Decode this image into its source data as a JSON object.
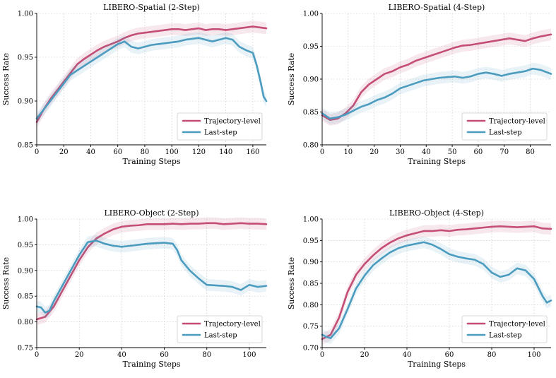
{
  "chart_data": [
    {
      "type": "line",
      "title": "LIBERO-Spatial (2-Step)",
      "xlabel": "Training Steps",
      "ylabel": "Success Rate",
      "xlim": [
        0,
        170
      ],
      "ylim": [
        0.85,
        1.0
      ],
      "xticks": [
        0,
        20,
        40,
        60,
        80,
        100,
        120,
        140,
        160
      ],
      "yticks": [
        0.85,
        0.9,
        0.95,
        1.0
      ],
      "xtick_labels": [
        "0",
        "20",
        "40",
        "60",
        "80",
        "100",
        "120",
        "140",
        "160"
      ],
      "ytick_labels": [
        "0.85",
        "0.90",
        "0.95",
        "1.00"
      ],
      "grid": true,
      "legend": "lower-right",
      "series": [
        {
          "name": "Trajectory-level",
          "color": "#c44e75",
          "x": [
            0,
            5,
            10,
            15,
            20,
            25,
            30,
            35,
            40,
            45,
            50,
            55,
            60,
            65,
            70,
            75,
            80,
            85,
            90,
            95,
            100,
            105,
            110,
            115,
            120,
            125,
            130,
            135,
            140,
            145,
            150,
            155,
            160,
            165,
            170
          ],
          "y": [
            0.876,
            0.89,
            0.902,
            0.912,
            0.922,
            0.932,
            0.942,
            0.948,
            0.953,
            0.958,
            0.962,
            0.965,
            0.968,
            0.972,
            0.975,
            0.977,
            0.978,
            0.979,
            0.98,
            0.981,
            0.982,
            0.982,
            0.981,
            0.982,
            0.983,
            0.981,
            0.982,
            0.982,
            0.981,
            0.982,
            0.983,
            0.984,
            0.985,
            0.984,
            0.983
          ]
        },
        {
          "name": "Last-step",
          "color": "#4c9cbf",
          "x": [
            0,
            5,
            10,
            15,
            20,
            25,
            30,
            35,
            40,
            45,
            50,
            55,
            60,
            65,
            70,
            75,
            80,
            85,
            90,
            95,
            100,
            105,
            110,
            115,
            120,
            125,
            130,
            135,
            140,
            145,
            150,
            155,
            160,
            163,
            166,
            168,
            170
          ],
          "y": [
            0.88,
            0.89,
            0.9,
            0.91,
            0.92,
            0.93,
            0.935,
            0.94,
            0.945,
            0.95,
            0.955,
            0.96,
            0.965,
            0.968,
            0.962,
            0.96,
            0.962,
            0.964,
            0.965,
            0.966,
            0.967,
            0.968,
            0.97,
            0.971,
            0.972,
            0.97,
            0.968,
            0.97,
            0.972,
            0.97,
            0.962,
            0.958,
            0.955,
            0.94,
            0.92,
            0.905,
            0.9
          ]
        }
      ]
    },
    {
      "type": "line",
      "title": "LIBERO-Spatial (4-Step)",
      "xlabel": "Training Steps",
      "ylabel": "Success Rate",
      "xlim": [
        0,
        88
      ],
      "ylim": [
        0.8,
        1.0
      ],
      "xticks": [
        0,
        10,
        20,
        30,
        40,
        50,
        60,
        70,
        80
      ],
      "yticks": [
        0.8,
        0.85,
        0.9,
        0.95,
        1.0
      ],
      "xtick_labels": [
        "0",
        "10",
        "20",
        "30",
        "40",
        "50",
        "60",
        "70",
        "80"
      ],
      "ytick_labels": [
        "0.80",
        "0.85",
        "0.90",
        "0.95",
        "1.00"
      ],
      "grid": true,
      "legend": "lower-right",
      "series": [
        {
          "name": "Trajectory-level",
          "color": "#c44e75",
          "x": [
            0,
            3,
            6,
            9,
            12,
            15,
            18,
            21,
            24,
            27,
            30,
            33,
            36,
            39,
            42,
            45,
            48,
            51,
            54,
            57,
            60,
            63,
            66,
            69,
            72,
            75,
            78,
            81,
            84,
            88
          ],
          "y": [
            0.845,
            0.838,
            0.84,
            0.848,
            0.86,
            0.88,
            0.892,
            0.9,
            0.908,
            0.912,
            0.918,
            0.922,
            0.928,
            0.932,
            0.936,
            0.94,
            0.944,
            0.948,
            0.951,
            0.952,
            0.954,
            0.956,
            0.958,
            0.96,
            0.962,
            0.96,
            0.958,
            0.962,
            0.965,
            0.968
          ]
        },
        {
          "name": "Last-step",
          "color": "#4c9cbf",
          "x": [
            0,
            3,
            6,
            9,
            12,
            15,
            18,
            21,
            24,
            27,
            30,
            33,
            36,
            39,
            42,
            45,
            48,
            51,
            54,
            57,
            60,
            63,
            66,
            69,
            72,
            75,
            78,
            81,
            84,
            88
          ],
          "y": [
            0.848,
            0.84,
            0.842,
            0.846,
            0.852,
            0.858,
            0.862,
            0.868,
            0.872,
            0.878,
            0.886,
            0.89,
            0.894,
            0.898,
            0.9,
            0.902,
            0.903,
            0.904,
            0.902,
            0.904,
            0.908,
            0.91,
            0.908,
            0.905,
            0.908,
            0.91,
            0.912,
            0.916,
            0.914,
            0.908
          ]
        }
      ]
    },
    {
      "type": "line",
      "title": "LIBERO-Object (2-Step)",
      "xlabel": "Training Steps",
      "ylabel": "Success Rate",
      "xlim": [
        0,
        108
      ],
      "ylim": [
        0.75,
        1.0
      ],
      "xticks": [
        0,
        20,
        40,
        60,
        80,
        100
      ],
      "yticks": [
        0.75,
        0.8,
        0.85,
        0.9,
        0.95,
        1.0
      ],
      "xtick_labels": [
        "0",
        "20",
        "40",
        "60",
        "80",
        "100"
      ],
      "ytick_labels": [
        "0.75",
        "0.80",
        "0.85",
        "0.90",
        "0.95",
        "1.00"
      ],
      "grid": true,
      "legend": "lower-right",
      "series": [
        {
          "name": "Trajectory-level",
          "color": "#c44e75",
          "x": [
            0,
            4,
            8,
            12,
            16,
            20,
            24,
            28,
            32,
            36,
            40,
            44,
            48,
            52,
            56,
            60,
            64,
            68,
            72,
            76,
            80,
            84,
            88,
            92,
            96,
            100,
            104,
            108
          ],
          "y": [
            0.805,
            0.81,
            0.83,
            0.86,
            0.89,
            0.92,
            0.945,
            0.962,
            0.972,
            0.98,
            0.985,
            0.987,
            0.988,
            0.99,
            0.99,
            0.99,
            0.991,
            0.99,
            0.991,
            0.991,
            0.992,
            0.992,
            0.99,
            0.991,
            0.992,
            0.991,
            0.991,
            0.99
          ]
        },
        {
          "name": "Last-step",
          "color": "#4c9cbf",
          "x": [
            0,
            2,
            4,
            6,
            8,
            12,
            16,
            20,
            24,
            28,
            32,
            36,
            40,
            44,
            48,
            52,
            56,
            60,
            64,
            66,
            68,
            72,
            76,
            80,
            84,
            88,
            92,
            96,
            100,
            104,
            108
          ],
          "y": [
            0.83,
            0.828,
            0.818,
            0.822,
            0.84,
            0.87,
            0.9,
            0.93,
            0.955,
            0.958,
            0.952,
            0.948,
            0.946,
            0.948,
            0.95,
            0.952,
            0.953,
            0.954,
            0.952,
            0.94,
            0.92,
            0.9,
            0.885,
            0.872,
            0.871,
            0.87,
            0.868,
            0.862,
            0.872,
            0.868,
            0.87
          ]
        }
      ]
    },
    {
      "type": "line",
      "title": "LIBERO-Object (4-Step)",
      "xlabel": "Training Steps",
      "ylabel": "Success Rate",
      "xlim": [
        0,
        108
      ],
      "ylim": [
        0.7,
        1.0
      ],
      "xticks": [
        0,
        20,
        40,
        60,
        80,
        100
      ],
      "yticks": [
        0.7,
        0.75,
        0.8,
        0.85,
        0.9,
        0.95,
        1.0
      ],
      "xtick_labels": [
        "0",
        "20",
        "40",
        "60",
        "80",
        "100"
      ],
      "ytick_labels": [
        "0.70",
        "0.75",
        "0.80",
        "0.85",
        "0.90",
        "0.95",
        "1.00"
      ],
      "grid": true,
      "legend": "lower-right",
      "series": [
        {
          "name": "Trajectory-level",
          "color": "#c44e75",
          "x": [
            0,
            4,
            8,
            12,
            16,
            20,
            24,
            28,
            32,
            36,
            40,
            44,
            48,
            52,
            56,
            60,
            64,
            68,
            72,
            76,
            80,
            84,
            88,
            92,
            96,
            100,
            104,
            108
          ],
          "y": [
            0.72,
            0.73,
            0.77,
            0.83,
            0.87,
            0.895,
            0.915,
            0.932,
            0.945,
            0.955,
            0.962,
            0.967,
            0.972,
            0.972,
            0.974,
            0.972,
            0.975,
            0.976,
            0.978,
            0.98,
            0.982,
            0.983,
            0.982,
            0.981,
            0.982,
            0.983,
            0.978,
            0.977
          ]
        },
        {
          "name": "Last-step",
          "color": "#4c9cbf",
          "x": [
            0,
            2,
            4,
            8,
            12,
            16,
            20,
            24,
            28,
            32,
            36,
            40,
            44,
            48,
            52,
            56,
            60,
            64,
            68,
            72,
            76,
            80,
            84,
            88,
            92,
            96,
            100,
            102,
            104,
            106,
            108
          ],
          "y": [
            0.73,
            0.725,
            0.722,
            0.745,
            0.79,
            0.838,
            0.868,
            0.892,
            0.908,
            0.922,
            0.932,
            0.938,
            0.942,
            0.946,
            0.94,
            0.93,
            0.918,
            0.912,
            0.908,
            0.905,
            0.895,
            0.875,
            0.865,
            0.87,
            0.885,
            0.88,
            0.86,
            0.84,
            0.82,
            0.805,
            0.81
          ]
        }
      ]
    }
  ]
}
